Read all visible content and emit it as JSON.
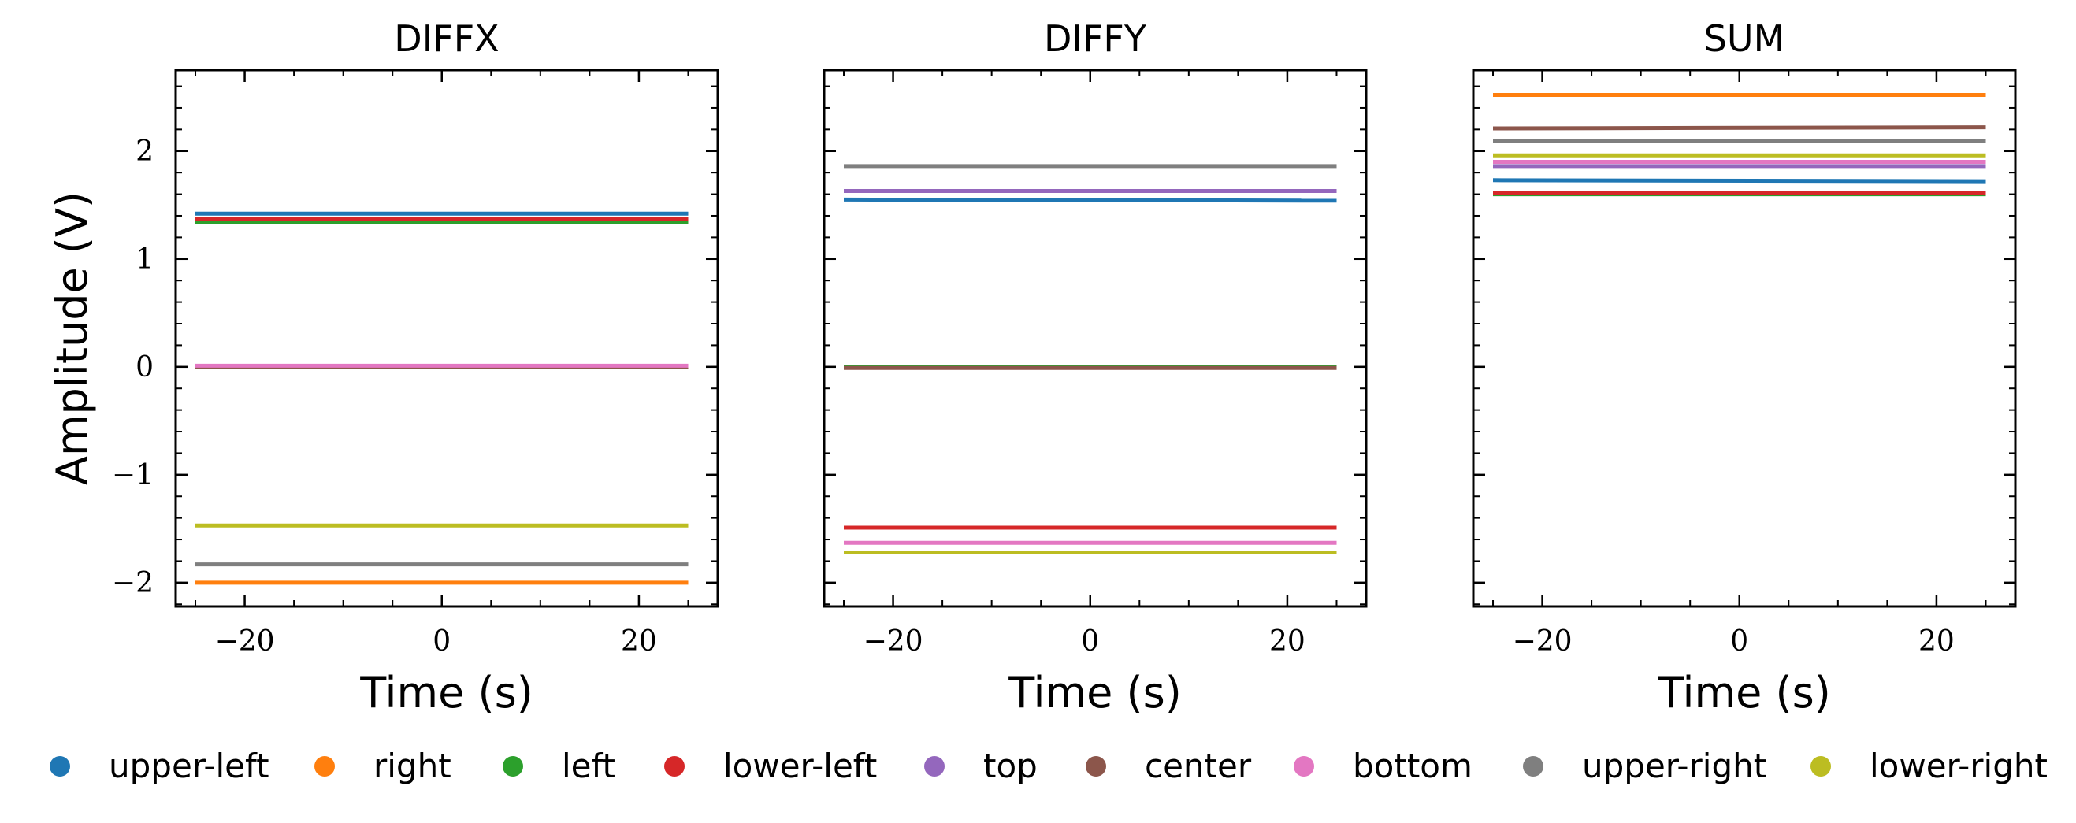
{
  "chart_data": [
    {
      "type": "line",
      "title": "DIFFX",
      "xlabel": "Time (s)",
      "ylabel": "Amplitude (V)",
      "xlim": [
        -27,
        28
      ],
      "ylim": [
        -2.22,
        2.75
      ],
      "xticks": [
        -20,
        0,
        20
      ],
      "xtick_labels": [
        "−20",
        "0",
        "20"
      ],
      "yticks": [
        -2,
        -1,
        0,
        1,
        2
      ],
      "ytick_labels": [
        "−2",
        "−1",
        "0",
        "1",
        "2"
      ],
      "x": [
        -25,
        25
      ],
      "series": [
        {
          "name": "upper-left",
          "values": [
            1.42,
            1.42
          ]
        },
        {
          "name": "right",
          "values": [
            -2.0,
            -2.0
          ]
        },
        {
          "name": "left",
          "values": [
            1.34,
            1.34
          ]
        },
        {
          "name": "lower-left",
          "values": [
            1.37,
            1.37
          ]
        },
        {
          "name": "top",
          "values": [
            0.0,
            0.0
          ]
        },
        {
          "name": "center",
          "values": [
            0.0,
            0.0
          ]
        },
        {
          "name": "bottom",
          "values": [
            0.01,
            0.01
          ]
        },
        {
          "name": "upper-right",
          "values": [
            -1.83,
            -1.83
          ]
        },
        {
          "name": "lower-right",
          "values": [
            -1.47,
            -1.47
          ]
        }
      ]
    },
    {
      "type": "line",
      "title": "DIFFY",
      "xlabel": "Time (s)",
      "ylabel": "",
      "xlim": [
        -27,
        28
      ],
      "ylim": [
        -2.22,
        2.75
      ],
      "xticks": [
        -20,
        0,
        20
      ],
      "xtick_labels": [
        "−20",
        "0",
        "20"
      ],
      "yticks": [
        -2,
        -1,
        0,
        1,
        2
      ],
      "ytick_labels": [],
      "x": [
        -25,
        25
      ],
      "series": [
        {
          "name": "upper-left",
          "values": [
            1.55,
            1.54
          ]
        },
        {
          "name": "right",
          "values": [
            0.0,
            0.0
          ]
        },
        {
          "name": "left",
          "values": [
            0.0,
            0.0
          ]
        },
        {
          "name": "lower-left",
          "values": [
            -1.49,
            -1.49
          ]
        },
        {
          "name": "top",
          "values": [
            1.63,
            1.63
          ]
        },
        {
          "name": "center",
          "values": [
            -0.01,
            -0.01
          ]
        },
        {
          "name": "bottom",
          "values": [
            -1.63,
            -1.63
          ]
        },
        {
          "name": "upper-right",
          "values": [
            1.86,
            1.86
          ]
        },
        {
          "name": "lower-right",
          "values": [
            -1.72,
            -1.72
          ]
        }
      ]
    },
    {
      "type": "line",
      "title": "SUM",
      "xlabel": "Time (s)",
      "ylabel": "",
      "xlim": [
        -27,
        28
      ],
      "ylim": [
        -2.22,
        2.75
      ],
      "xticks": [
        -20,
        0,
        20
      ],
      "xtick_labels": [
        "−20",
        "0",
        "20"
      ],
      "yticks": [
        -2,
        -1,
        0,
        1,
        2
      ],
      "ytick_labels": [],
      "x": [
        -25,
        25
      ],
      "series": [
        {
          "name": "upper-left",
          "values": [
            1.73,
            1.72
          ]
        },
        {
          "name": "right",
          "values": [
            2.52,
            2.52
          ]
        },
        {
          "name": "left",
          "values": [
            1.6,
            1.6
          ]
        },
        {
          "name": "lower-left",
          "values": [
            1.61,
            1.61
          ]
        },
        {
          "name": "top",
          "values": [
            1.86,
            1.86
          ]
        },
        {
          "name": "center",
          "values": [
            2.21,
            2.22
          ]
        },
        {
          "name": "bottom",
          "values": [
            1.9,
            1.9
          ]
        },
        {
          "name": "upper-right",
          "values": [
            2.09,
            2.09
          ]
        },
        {
          "name": "lower-right",
          "values": [
            1.96,
            1.96
          ]
        }
      ]
    }
  ],
  "legend": {
    "placement": "bottom",
    "items": [
      {
        "label": "upper-left",
        "color": "#1f77b4"
      },
      {
        "label": "right",
        "color": "#ff7f0e"
      },
      {
        "label": "left",
        "color": "#2ca02c"
      },
      {
        "label": "lower-left",
        "color": "#d62728"
      },
      {
        "label": "top",
        "color": "#9467bd"
      },
      {
        "label": "center",
        "color": "#8c564b"
      },
      {
        "label": "bottom",
        "color": "#e377c2"
      },
      {
        "label": "upper-right",
        "color": "#7f7f7f"
      },
      {
        "label": "lower-right",
        "color": "#bcbd22"
      }
    ]
  }
}
